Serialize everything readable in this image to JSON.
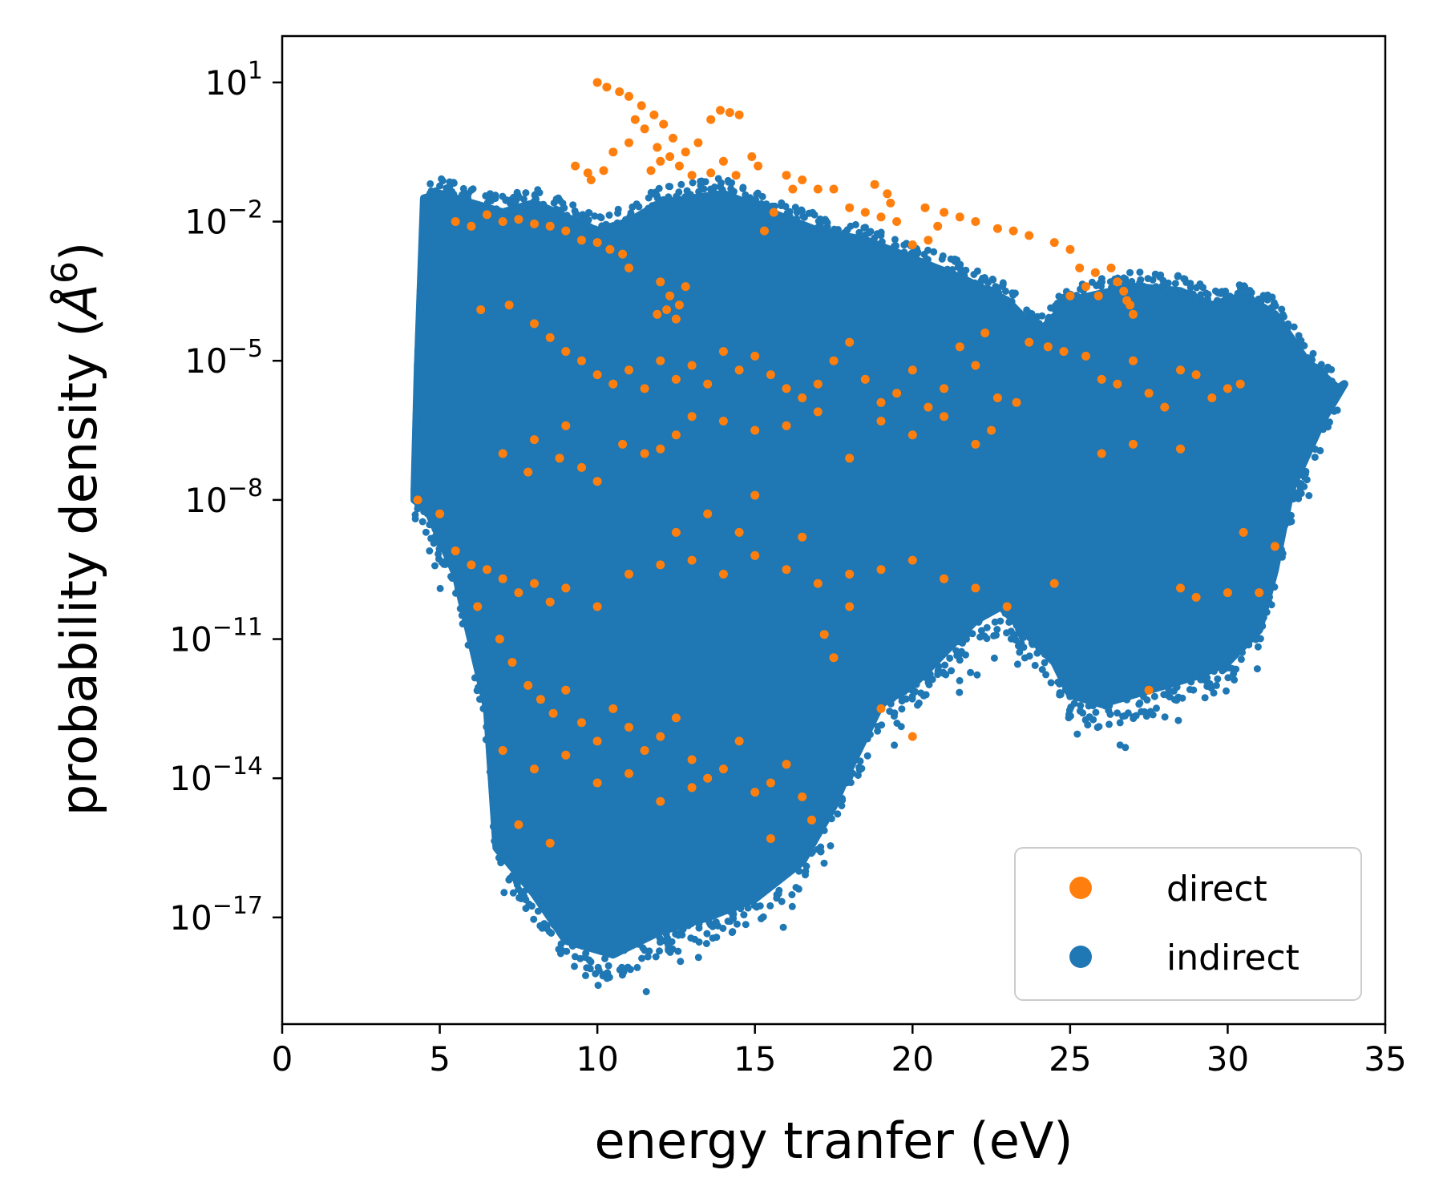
{
  "chart_data": {
    "type": "scatter",
    "xlabel": "energy tranfer (eV)",
    "ylabel": "probability density (",
    "ylabel_unit": "Å",
    "ylabel_unit_exp": "6",
    "ylabel_close": ")",
    "xlim": [
      0,
      35
    ],
    "ylim_log10": [
      -19.3,
      2
    ],
    "y_scale": "log",
    "grid": false,
    "legend_position": "bottom-right",
    "x_ticks": [
      "0",
      "5",
      "10",
      "15",
      "20",
      "25",
      "30",
      "35"
    ],
    "y_ticks": [
      {
        "base": "10",
        "exp": "1"
      },
      {
        "base": "10",
        "exp": "−2"
      },
      {
        "base": "10",
        "exp": "−5"
      },
      {
        "base": "10",
        "exp": "−8"
      },
      {
        "base": "10",
        "exp": "−11"
      },
      {
        "base": "10",
        "exp": "−14"
      },
      {
        "base": "10",
        "exp": "−17"
      }
    ],
    "series": [
      {
        "name": "indirect",
        "color": "#1f77b4",
        "upper_envelope": [
          [
            4.2,
            -7.8
          ],
          [
            4.3,
            -5.2
          ],
          [
            4.5,
            -1.5
          ],
          [
            5.0,
            -1.4
          ],
          [
            6.0,
            -1.6
          ],
          [
            7.0,
            -1.8
          ],
          [
            8.0,
            -1.6
          ],
          [
            9.0,
            -1.9
          ],
          [
            10.0,
            -2.2
          ],
          [
            11.0,
            -2.0
          ],
          [
            12.0,
            -1.6
          ],
          [
            14.0,
            -1.4
          ],
          [
            15.5,
            -1.8
          ],
          [
            17.0,
            -2.2
          ],
          [
            18.5,
            -2.4
          ],
          [
            20.0,
            -2.8
          ],
          [
            21.5,
            -3.2
          ],
          [
            23.0,
            -3.7
          ],
          [
            24.0,
            -4.4
          ],
          [
            25.0,
            -3.7
          ],
          [
            27.0,
            -3.4
          ],
          [
            28.5,
            -3.5
          ],
          [
            29.5,
            -3.8
          ],
          [
            30.5,
            -3.6
          ],
          [
            31.5,
            -4.0
          ],
          [
            32.5,
            -5.0
          ],
          [
            33.5,
            -5.6
          ]
        ],
        "lower_envelope": [
          [
            4.2,
            -8.0
          ],
          [
            4.6,
            -8.2
          ],
          [
            5.5,
            -9.6
          ],
          [
            6.5,
            -12.5
          ],
          [
            6.8,
            -15.5
          ],
          [
            8.0,
            -16.5
          ],
          [
            9.0,
            -17.5
          ],
          [
            10.5,
            -17.8
          ],
          [
            12.0,
            -17.3
          ],
          [
            13.5,
            -17.0
          ],
          [
            15.0,
            -16.6
          ],
          [
            16.5,
            -15.8
          ],
          [
            17.5,
            -14.6
          ],
          [
            18.0,
            -13.8
          ],
          [
            19.0,
            -12.4
          ],
          [
            20.0,
            -12.0
          ],
          [
            21.0,
            -11.3
          ],
          [
            22.0,
            -10.6
          ],
          [
            22.8,
            -10.3
          ],
          [
            23.5,
            -10.8
          ],
          [
            24.5,
            -11.5
          ],
          [
            25.0,
            -12.2
          ],
          [
            26.0,
            -12.4
          ],
          [
            27.0,
            -12.2
          ],
          [
            28.0,
            -12.0
          ],
          [
            29.0,
            -11.8
          ],
          [
            30.0,
            -11.5
          ],
          [
            31.0,
            -10.8
          ],
          [
            31.5,
            -9.5
          ],
          [
            32.0,
            -7.8
          ],
          [
            33.0,
            -6.3
          ],
          [
            33.7,
            -5.5
          ]
        ]
      },
      {
        "name": "direct",
        "color": "#ff7f0e",
        "points": [
          [
            10.0,
            1.0
          ],
          [
            10.3,
            0.9
          ],
          [
            10.7,
            0.8
          ],
          [
            11.0,
            0.7
          ],
          [
            11.4,
            0.5
          ],
          [
            11.8,
            0.3
          ],
          [
            12.1,
            0.1
          ],
          [
            12.4,
            -0.2
          ],
          [
            12.8,
            -0.5
          ],
          [
            13.2,
            -0.3
          ],
          [
            13.6,
            0.2
          ],
          [
            13.9,
            0.4
          ],
          [
            14.2,
            0.35
          ],
          [
            14.5,
            0.3
          ],
          [
            14.9,
            -0.6
          ],
          [
            15.1,
            -0.8
          ],
          [
            11.2,
            0.2
          ],
          [
            11.5,
            0.0
          ],
          [
            11.9,
            -0.4
          ],
          [
            12.3,
            -0.6
          ],
          [
            12.6,
            -0.8
          ],
          [
            13.0,
            -1.0
          ],
          [
            11.7,
            -0.9
          ],
          [
            12.0,
            -0.7
          ],
          [
            11.0,
            -0.3
          ],
          [
            10.5,
            -0.5
          ],
          [
            10.2,
            -0.9
          ],
          [
            9.7,
            -0.95
          ],
          [
            9.3,
            -0.8
          ],
          [
            9.8,
            -1.1
          ],
          [
            13.6,
            -0.95
          ],
          [
            14.0,
            -0.7
          ],
          [
            14.4,
            -1.0
          ],
          [
            16.0,
            -1.0
          ],
          [
            16.5,
            -1.1
          ],
          [
            17.0,
            -1.3
          ],
          [
            17.5,
            -1.3
          ],
          [
            18.0,
            -1.7
          ],
          [
            18.5,
            -1.8
          ],
          [
            19.0,
            -1.9
          ],
          [
            19.3,
            -1.6
          ],
          [
            19.5,
            -2.0
          ],
          [
            20.0,
            -2.5
          ],
          [
            20.5,
            -2.4
          ],
          [
            21.0,
            -1.8
          ],
          [
            21.5,
            -1.9
          ],
          [
            22.0,
            -2.0
          ],
          [
            22.7,
            -2.15
          ],
          [
            23.2,
            -2.2
          ],
          [
            23.7,
            -2.3
          ],
          [
            24.5,
            -2.45
          ],
          [
            25.0,
            -2.6
          ],
          [
            25.3,
            -3.0
          ],
          [
            25.5,
            -3.4
          ],
          [
            25.8,
            -3.1
          ],
          [
            26.3,
            -3.0
          ],
          [
            26.5,
            -3.3
          ],
          [
            26.7,
            -3.5
          ],
          [
            26.9,
            -3.8
          ],
          [
            27.0,
            -4.0
          ],
          [
            26.8,
            -3.7
          ],
          [
            25.9,
            -3.6
          ],
          [
            25.0,
            -3.6
          ],
          [
            20.4,
            -1.7
          ],
          [
            20.8,
            -2.1
          ],
          [
            16.2,
            -1.3
          ],
          [
            15.3,
            -2.2
          ],
          [
            15.6,
            -1.8
          ],
          [
            18.8,
            -1.2
          ],
          [
            19.2,
            -1.4
          ],
          [
            5.5,
            -2.0
          ],
          [
            6.0,
            -2.1
          ],
          [
            6.5,
            -1.85
          ],
          [
            7.0,
            -2.0
          ],
          [
            7.5,
            -1.95
          ],
          [
            8.0,
            -2.05
          ],
          [
            8.5,
            -2.1
          ],
          [
            9.0,
            -2.2
          ],
          [
            9.5,
            -2.4
          ],
          [
            10.0,
            -2.45
          ],
          [
            10.4,
            -2.6
          ],
          [
            10.8,
            -2.7
          ],
          [
            11.0,
            -3.0
          ],
          [
            12.0,
            -3.3
          ],
          [
            12.3,
            -3.6
          ],
          [
            12.6,
            -3.8
          ],
          [
            12.8,
            -3.4
          ],
          [
            12.2,
            -3.9
          ],
          [
            11.9,
            -4.0
          ],
          [
            12.5,
            -4.1
          ],
          [
            6.3,
            -3.9
          ],
          [
            7.2,
            -3.8
          ],
          [
            8.0,
            -4.2
          ],
          [
            8.5,
            -4.5
          ],
          [
            9.0,
            -4.8
          ],
          [
            9.5,
            -5.0
          ],
          [
            10.0,
            -5.3
          ],
          [
            10.5,
            -5.5
          ],
          [
            11.0,
            -5.2
          ],
          [
            11.5,
            -5.6
          ],
          [
            12.0,
            -5.0
          ],
          [
            12.5,
            -5.4
          ],
          [
            13.0,
            -5.1
          ],
          [
            13.5,
            -5.5
          ],
          [
            14.0,
            -4.8
          ],
          [
            14.5,
            -5.2
          ],
          [
            15.0,
            -4.9
          ],
          [
            15.5,
            -5.3
          ],
          [
            16.0,
            -5.6
          ],
          [
            16.5,
            -5.8
          ],
          [
            17.0,
            -5.5
          ],
          [
            17.5,
            -5.0
          ],
          [
            18.0,
            -4.6
          ],
          [
            18.5,
            -5.4
          ],
          [
            19.0,
            -5.9
          ],
          [
            19.5,
            -5.7
          ],
          [
            20.0,
            -5.2
          ],
          [
            20.5,
            -6.0
          ],
          [
            21.0,
            -5.6
          ],
          [
            21.5,
            -4.7
          ],
          [
            22.0,
            -5.1
          ],
          [
            22.3,
            -4.4
          ],
          [
            22.7,
            -5.8
          ],
          [
            23.3,
            -5.9
          ],
          [
            23.7,
            -4.6
          ],
          [
            24.3,
            -4.7
          ],
          [
            24.8,
            -4.8
          ],
          [
            25.5,
            -4.9
          ],
          [
            26.0,
            -5.4
          ],
          [
            26.5,
            -5.5
          ],
          [
            27.0,
            -5.0
          ],
          [
            27.5,
            -5.7
          ],
          [
            28.0,
            -6.0
          ],
          [
            28.5,
            -5.2
          ],
          [
            29.0,
            -5.3
          ],
          [
            29.5,
            -5.8
          ],
          [
            30.0,
            -5.6
          ],
          [
            30.4,
            -5.5
          ],
          [
            7.0,
            -7.0
          ],
          [
            8.0,
            -6.7
          ],
          [
            9.0,
            -6.4
          ],
          [
            9.5,
            -7.3
          ],
          [
            10.0,
            -7.6
          ],
          [
            10.8,
            -6.8
          ],
          [
            11.5,
            -7.0
          ],
          [
            12.0,
            -6.9
          ],
          [
            12.5,
            -6.6
          ],
          [
            13.0,
            -6.2
          ],
          [
            14.0,
            -6.3
          ],
          [
            15.0,
            -6.5
          ],
          [
            16.0,
            -6.4
          ],
          [
            17.0,
            -6.1
          ],
          [
            18.0,
            -7.1
          ],
          [
            19.0,
            -6.3
          ],
          [
            20.0,
            -6.6
          ],
          [
            21.0,
            -6.2
          ],
          [
            22.0,
            -6.8
          ],
          [
            22.5,
            -6.5
          ],
          [
            26.0,
            -7.0
          ],
          [
            27.0,
            -6.8
          ],
          [
            28.5,
            -6.9
          ],
          [
            7.8,
            -7.4
          ],
          [
            8.8,
            -7.1
          ],
          [
            4.3,
            -8.0
          ],
          [
            5.0,
            -8.3
          ],
          [
            5.5,
            -9.1
          ],
          [
            6.0,
            -9.4
          ],
          [
            6.5,
            -9.5
          ],
          [
            7.0,
            -9.7
          ],
          [
            7.5,
            -10.0
          ],
          [
            8.0,
            -9.8
          ],
          [
            8.5,
            -10.2
          ],
          [
            9.0,
            -9.9
          ],
          [
            10.0,
            -10.3
          ],
          [
            11.0,
            -9.6
          ],
          [
            12.0,
            -9.4
          ],
          [
            13.0,
            -9.3
          ],
          [
            14.0,
            -9.6
          ],
          [
            15.0,
            -9.2
          ],
          [
            16.0,
            -9.5
          ],
          [
            17.0,
            -9.8
          ],
          [
            18.0,
            -9.6
          ],
          [
            19.0,
            -9.5
          ],
          [
            20.0,
            -9.3
          ],
          [
            21.0,
            -9.7
          ],
          [
            22.0,
            -9.9
          ],
          [
            23.0,
            -10.3
          ],
          [
            24.5,
            -9.8
          ],
          [
            28.5,
            -9.9
          ],
          [
            29.0,
            -10.1
          ],
          [
            30.0,
            -10.0
          ],
          [
            30.5,
            -8.7
          ],
          [
            31.0,
            -10.0
          ],
          [
            31.5,
            -9.0
          ],
          [
            13.5,
            -8.3
          ],
          [
            12.5,
            -8.7
          ],
          [
            14.5,
            -8.7
          ],
          [
            15.0,
            -7.9
          ],
          [
            16.5,
            -8.8
          ],
          [
            17.2,
            -10.9
          ],
          [
            17.5,
            -11.4
          ],
          [
            18.0,
            -10.3
          ],
          [
            19.0,
            -12.5
          ],
          [
            20.0,
            -13.1
          ],
          [
            27.5,
            -12.1
          ],
          [
            6.2,
            -10.3
          ],
          [
            6.9,
            -11.0
          ],
          [
            7.3,
            -11.5
          ],
          [
            7.8,
            -12.0
          ],
          [
            8.2,
            -12.3
          ],
          [
            8.6,
            -12.6
          ],
          [
            9.0,
            -12.1
          ],
          [
            9.5,
            -12.8
          ],
          [
            10.0,
            -13.2
          ],
          [
            10.5,
            -12.5
          ],
          [
            11.0,
            -12.9
          ],
          [
            11.5,
            -13.4
          ],
          [
            12.0,
            -13.1
          ],
          [
            12.5,
            -12.7
          ],
          [
            13.0,
            -13.6
          ],
          [
            13.5,
            -14.0
          ],
          [
            14.0,
            -13.8
          ],
          [
            14.5,
            -13.2
          ],
          [
            15.0,
            -14.3
          ],
          [
            15.5,
            -14.1
          ],
          [
            16.0,
            -13.7
          ],
          [
            16.5,
            -14.4
          ],
          [
            7.0,
            -13.4
          ],
          [
            8.0,
            -13.8
          ],
          [
            9.0,
            -13.5
          ],
          [
            10.0,
            -14.1
          ],
          [
            11.0,
            -13.9
          ],
          [
            12.0,
            -14.5
          ],
          [
            13.0,
            -14.2
          ],
          [
            7.5,
            -15.0
          ],
          [
            8.5,
            -15.4
          ],
          [
            15.5,
            -15.3
          ],
          [
            16.8,
            -14.9
          ]
        ]
      }
    ]
  }
}
